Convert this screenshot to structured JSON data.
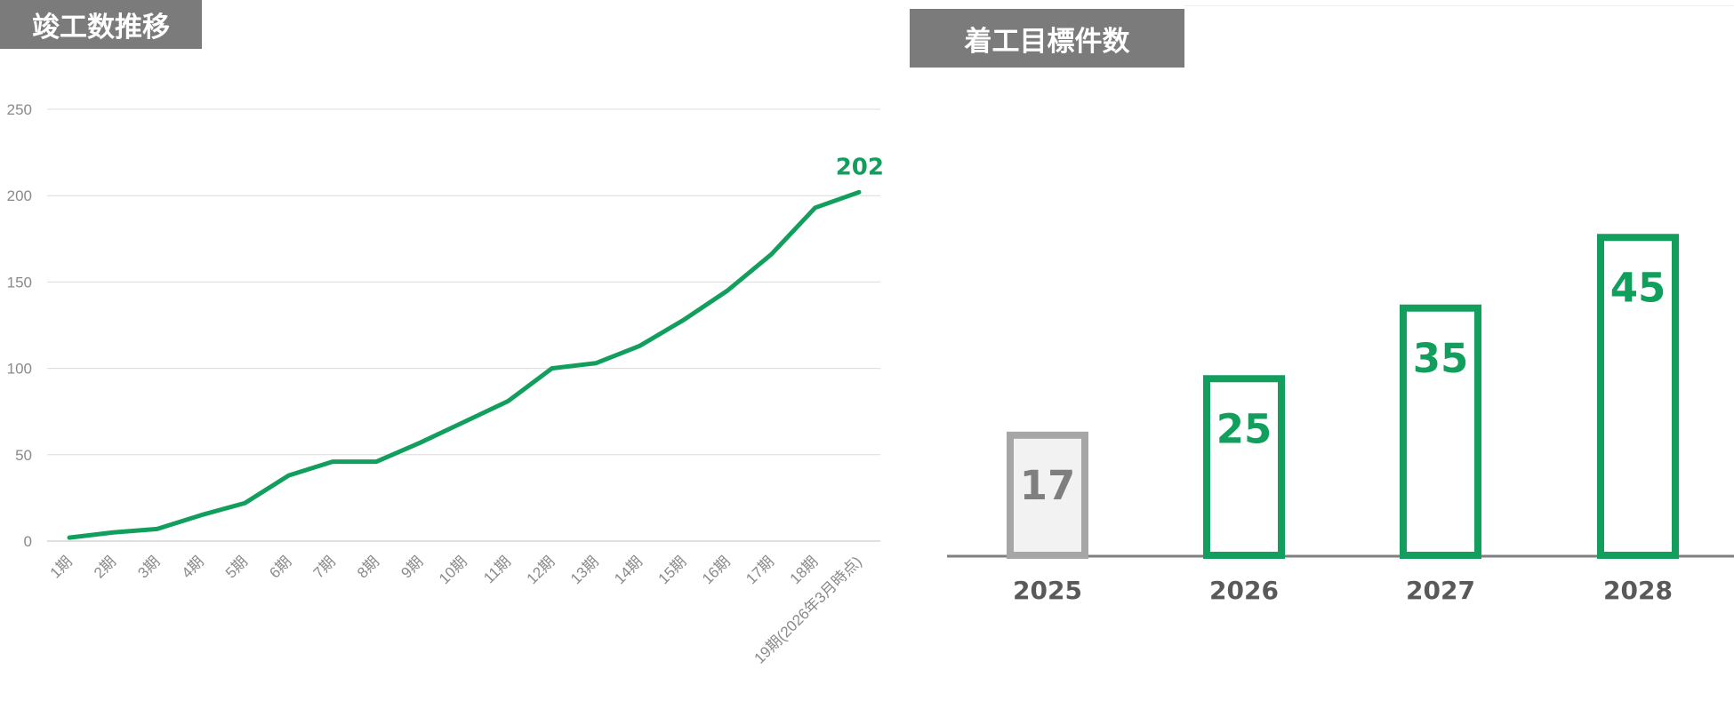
{
  "chart_data": [
    {
      "type": "line",
      "title": "竣工数推移",
      "xlabel": "",
      "ylabel": "",
      "ylim": [
        0,
        250
      ],
      "yticks": [
        0,
        50,
        100,
        150,
        200,
        250
      ],
      "grid": true,
      "categories": [
        "1期",
        "2期",
        "3期",
        "4期",
        "5期",
        "6期",
        "7期",
        "8期",
        "9期",
        "10期",
        "11期",
        "12期",
        "13期",
        "14期",
        "15期",
        "16期",
        "17期",
        "18期",
        "19期(2026年3月時点)"
      ],
      "values": [
        2,
        5,
        7,
        15,
        22,
        38,
        46,
        46,
        57,
        69,
        81,
        100,
        103,
        113,
        128,
        145,
        166,
        193,
        202
      ],
      "end_label": "202",
      "color": "#129f5d"
    },
    {
      "type": "bar",
      "title": "着工目標件数",
      "categories": [
        "2025",
        "2026",
        "2027",
        "2028"
      ],
      "values": [
        17,
        25,
        35,
        45
      ],
      "value_labels": [
        "17",
        "25",
        "35",
        "45"
      ],
      "colors": {
        "actual": "#a6a6a6",
        "target": "#129f5d",
        "actual_fill": "#f2f2f2"
      },
      "styles": [
        "actual",
        "target",
        "target",
        "target"
      ]
    }
  ]
}
